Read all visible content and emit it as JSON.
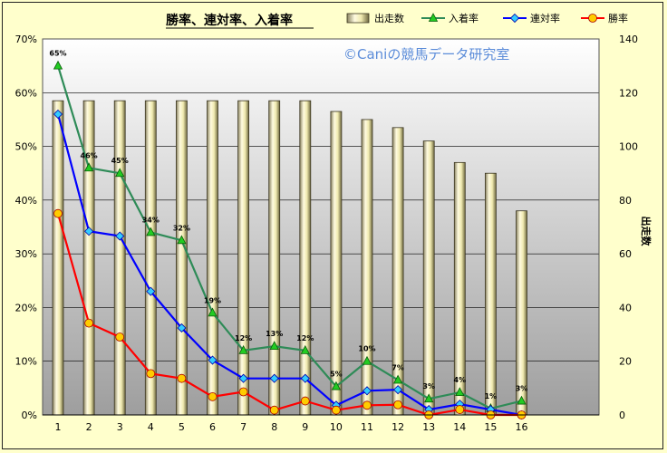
{
  "chart_data": {
    "type": "bar+line",
    "title": "勝率、連対率、入着率",
    "copyright": "©Caniの競馬データ研究室",
    "categories": [
      "1",
      "2",
      "3",
      "4",
      "5",
      "6",
      "7",
      "8",
      "9",
      "10",
      "11",
      "12",
      "13",
      "14",
      "15",
      "16"
    ],
    "y_left": {
      "min": 0,
      "max": 70,
      "step": 10,
      "unit": "%"
    },
    "y_right": {
      "min": 0,
      "max": 140,
      "step": 20,
      "label": "出走数"
    },
    "legend_position": "top",
    "grid": true,
    "bars": {
      "name": "出走数",
      "values": [
        117,
        117,
        117,
        117,
        117,
        117,
        117,
        117,
        117,
        113,
        110,
        107,
        102,
        94,
        90,
        76
      ],
      "color": "#f0eab0"
    },
    "series": [
      {
        "name": "入着率",
        "color": "#2e8b57",
        "marker_fill": "#22cc22",
        "values": [
          65,
          46,
          45,
          34,
          32.5,
          19,
          12,
          12.8,
          12,
          5.3,
          10,
          6.5,
          3,
          4.2,
          1.2,
          2.6
        ],
        "labels": [
          "65%",
          "46%",
          "45%",
          "34%",
          "32%",
          "19%",
          "12%",
          "13%",
          "12%",
          "5%",
          "10%",
          "7%",
          "3%",
          "4%",
          "1%",
          "3%"
        ]
      },
      {
        "name": "連対率",
        "color": "#0000ff",
        "marker_fill": "#33ccff",
        "values": [
          56,
          34.2,
          33.3,
          23,
          16.2,
          10.2,
          6.8,
          6.8,
          6.8,
          1.8,
          4.5,
          4.7,
          1,
          2,
          1,
          0
        ]
      },
      {
        "name": "勝率",
        "color": "#ff0000",
        "marker_fill": "#ffcc00",
        "values": [
          37.5,
          17.1,
          14.5,
          7.7,
          6.8,
          3.4,
          4.3,
          0.9,
          2.6,
          0.9,
          1.8,
          1.9,
          0,
          1,
          0,
          0
        ]
      }
    ]
  }
}
